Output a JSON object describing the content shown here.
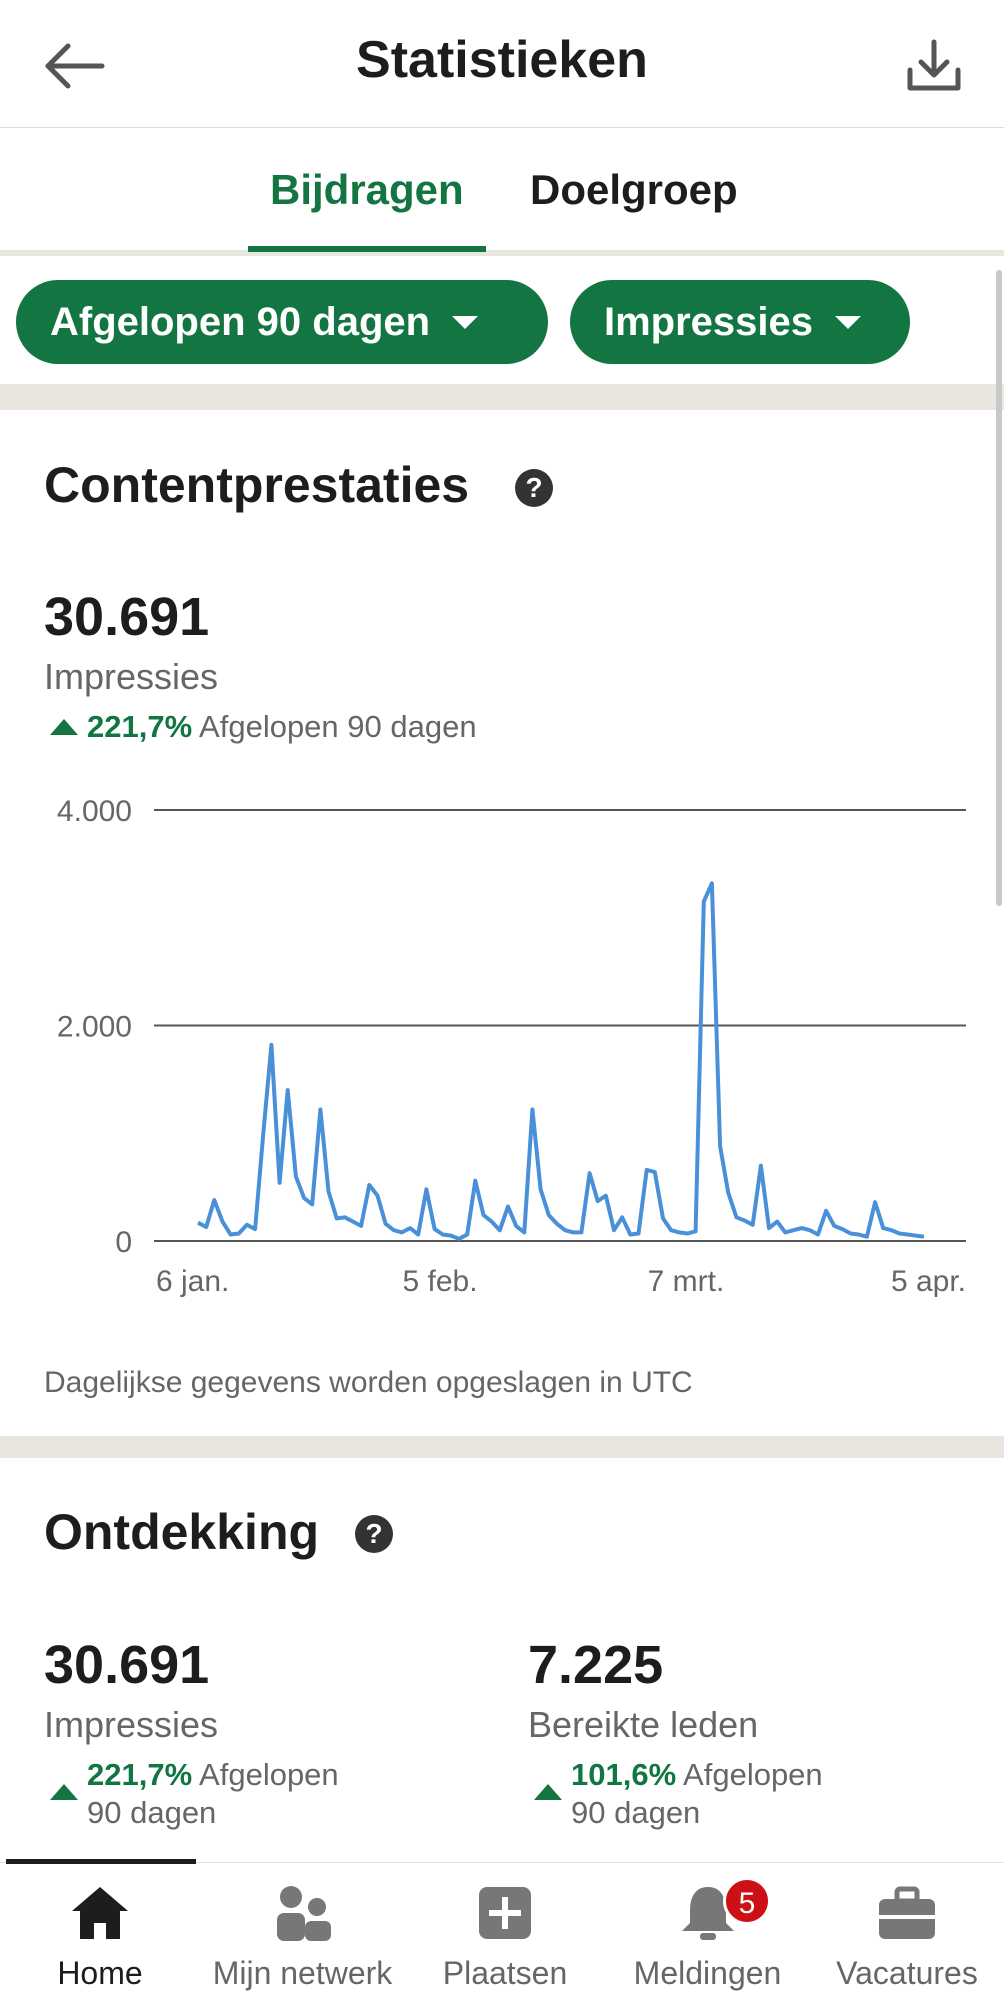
{
  "header": {
    "title": "Statistieken",
    "back_icon": "arrow-left-icon",
    "download_icon": "download-icon"
  },
  "tabs": [
    {
      "label": "Bijdragen",
      "active": true
    },
    {
      "label": "Doelgroep",
      "active": false
    }
  ],
  "filters": {
    "range_label": "Afgelopen 90 dagen",
    "metric_label": "Impressies"
  },
  "content_performance": {
    "title": "Contentprestaties",
    "total": "30.691",
    "metric": "Impressies",
    "delta_pct": "221,7%",
    "delta_period": "Afgelopen 90 dagen",
    "footnote": "Dagelijkse gegevens worden opgeslagen in UTC"
  },
  "chart_data": {
    "type": "line",
    "y_ticks": [
      "4.000",
      "2.000",
      "0"
    ],
    "x_ticks": [
      "6 jan.",
      "5 feb.",
      "7 mrt.",
      "5 apr."
    ],
    "ylim": [
      0,
      4000
    ],
    "xlim": [
      0,
      90
    ],
    "grid": true,
    "color": "#4a90d9",
    "x": [
      0,
      1,
      2,
      3,
      4,
      5,
      6,
      7,
      8,
      9,
      10,
      11,
      12,
      13,
      14,
      15,
      16,
      17,
      18,
      19,
      20,
      21,
      22,
      23,
      24,
      25,
      26,
      27,
      28,
      29,
      30,
      31,
      32,
      33,
      34,
      35,
      36,
      37,
      38,
      39,
      40,
      41,
      42,
      43,
      44,
      45,
      46,
      47,
      48,
      49,
      50,
      51,
      52,
      53,
      54,
      55,
      56,
      57,
      58,
      59,
      60,
      61,
      62,
      63,
      64,
      65,
      66,
      67,
      68,
      69,
      70,
      71,
      72,
      73,
      74,
      75,
      76,
      77,
      78,
      79,
      80,
      81,
      82,
      83,
      84,
      85,
      86,
      87,
      88,
      89
    ],
    "values": [
      170,
      130,
      380,
      180,
      60,
      70,
      150,
      110,
      1000,
      1820,
      540,
      1400,
      600,
      400,
      340,
      1220,
      460,
      210,
      220,
      180,
      140,
      520,
      420,
      160,
      100,
      80,
      120,
      60,
      480,
      110,
      60,
      50,
      20,
      60,
      560,
      240,
      180,
      100,
      320,
      140,
      80,
      1220,
      480,
      240,
      160,
      100,
      80,
      80,
      630,
      370,
      420,
      100,
      220,
      60,
      70,
      660,
      640,
      210,
      100,
      80,
      70,
      90,
      3150,
      3320,
      880,
      450,
      220,
      190,
      150,
      700,
      120,
      180,
      80,
      100,
      120,
      100,
      60,
      280,
      140,
      110,
      70,
      60,
      40,
      360,
      120,
      100,
      70,
      60,
      50,
      40
    ]
  },
  "discovery": {
    "title": "Ontdekking",
    "impressions": {
      "value": "30.691",
      "label": "Impressies",
      "delta_pct": "221,7%",
      "delta_line1": "Afgelopen",
      "delta_line2": "90 dagen"
    },
    "members": {
      "value": "7.225",
      "label": "Bereikte leden",
      "delta_pct": "101,6%",
      "delta_line1": "Afgelopen",
      "delta_line2": "90 dagen"
    }
  },
  "bottom_nav": [
    {
      "label": "Home",
      "icon": "home-icon",
      "active": true
    },
    {
      "label": "Mijn netwerk",
      "icon": "people-icon",
      "active": false
    },
    {
      "label": "Plaatsen",
      "icon": "plus-square-icon",
      "active": false
    },
    {
      "label": "Meldingen",
      "icon": "bell-icon",
      "active": false,
      "badge": "5"
    },
    {
      "label": "Vacatures",
      "icon": "briefcase-icon",
      "active": false
    }
  ]
}
